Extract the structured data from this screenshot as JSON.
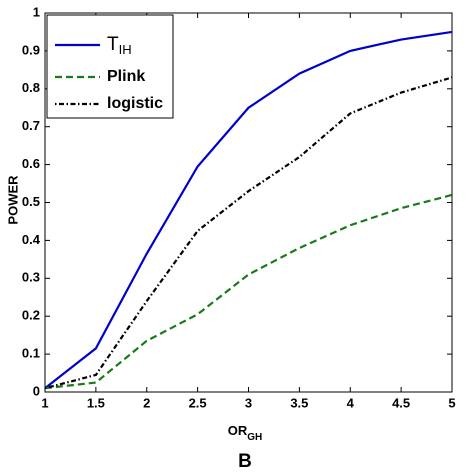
{
  "chart_data": {
    "type": "line",
    "x": [
      1,
      1.5,
      2,
      2.5,
      3,
      3.5,
      4,
      4.5,
      5
    ],
    "series": [
      {
        "name": "T",
        "name_subscript": "IH",
        "color": "#0000cc",
        "style": "solid",
        "values": [
          0.01,
          0.115,
          0.365,
          0.595,
          0.75,
          0.84,
          0.9,
          0.93,
          0.95
        ]
      },
      {
        "name": "Plink",
        "color": "#1a7a1a",
        "style": "dashed",
        "values": [
          0.01,
          0.025,
          0.135,
          0.205,
          0.31,
          0.38,
          0.44,
          0.485,
          0.52
        ]
      },
      {
        "name": "logistic",
        "color": "#000000",
        "style": "dashdot",
        "values": [
          0.01,
          0.045,
          0.24,
          0.425,
          0.53,
          0.62,
          0.735,
          0.79,
          0.83
        ]
      }
    ],
    "xlim": [
      1,
      5
    ],
    "xticks": [
      1,
      1.5,
      2,
      2.5,
      3,
      3.5,
      4,
      4.5,
      5
    ],
    "ylim": [
      0,
      1
    ],
    "yticks": [
      0,
      0.1,
      0.2,
      0.3,
      0.4,
      0.5,
      0.6,
      0.7,
      0.8,
      0.9,
      1
    ],
    "xlabel": "OR",
    "xlabel_subscript": "GH",
    "ylabel": "POWER",
    "panel_label": "B",
    "legend": "upper left",
    "grid": false
  }
}
